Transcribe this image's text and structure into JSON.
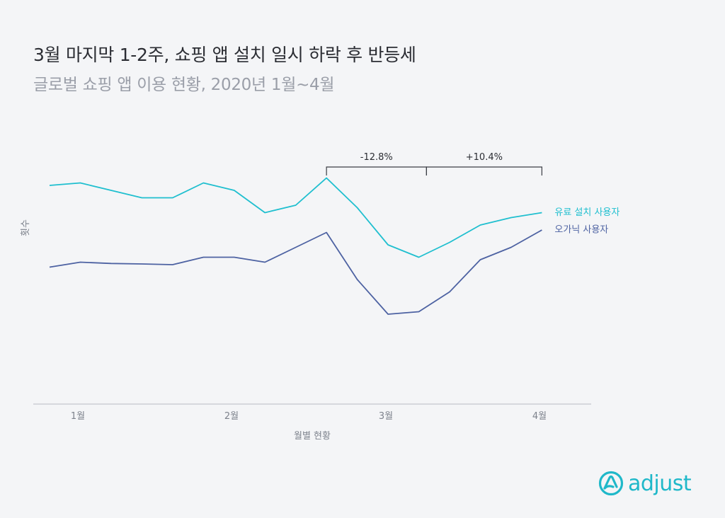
{
  "header": {
    "title": "3월 마지막 1-2주, 쇼핑 앱 설치 일시 하락 후 반등세",
    "subtitle": "글로벌 쇼핑 앱 이용 현황, 2020년 1월~4월"
  },
  "brand": {
    "name": "adjust",
    "color": "#1fb8c9",
    "icon": "adjust-logo-icon"
  },
  "chart_data": {
    "type": "line",
    "xlabel": "월별 현황",
    "ylabel": "횟수",
    "x_ticks": [
      "1월",
      "2월",
      "3월",
      "4월"
    ],
    "y_ticks_shown": false,
    "grid": false,
    "legend": "inline-right",
    "ylim": [
      0,
      100
    ],
    "series": [
      {
        "name": "유료 설치 사용자",
        "color": "#1fbfcf",
        "x": [
          1.0,
          1.2,
          1.4,
          1.6,
          1.8,
          2.0,
          2.2,
          2.4,
          2.6,
          2.8,
          3.0,
          3.2,
          3.4,
          3.6,
          3.8,
          4.0,
          4.2
        ],
        "values": [
          88,
          89,
          86,
          83,
          83,
          89,
          86,
          77,
          80,
          91,
          79,
          64,
          59,
          65,
          72,
          75,
          77
        ]
      },
      {
        "name": "오가닉 사용자",
        "color": "#4d62a2",
        "x": [
          1.0,
          1.2,
          1.4,
          1.6,
          1.8,
          2.0,
          2.2,
          2.4,
          2.6,
          2.8,
          3.0,
          3.2,
          3.4,
          3.6,
          3.8,
          4.0,
          4.2
        ],
        "values": [
          55,
          57,
          56.5,
          56.3,
          56,
          59,
          59,
          57,
          63,
          69,
          50,
          36,
          37,
          45,
          58,
          63,
          70
        ]
      }
    ],
    "annotations": [
      {
        "label": "-12.8%",
        "from_x": 2.8,
        "to_x": 3.45
      },
      {
        "label": "+10.4%",
        "from_x": 3.45,
        "to_x": 4.2
      }
    ]
  }
}
